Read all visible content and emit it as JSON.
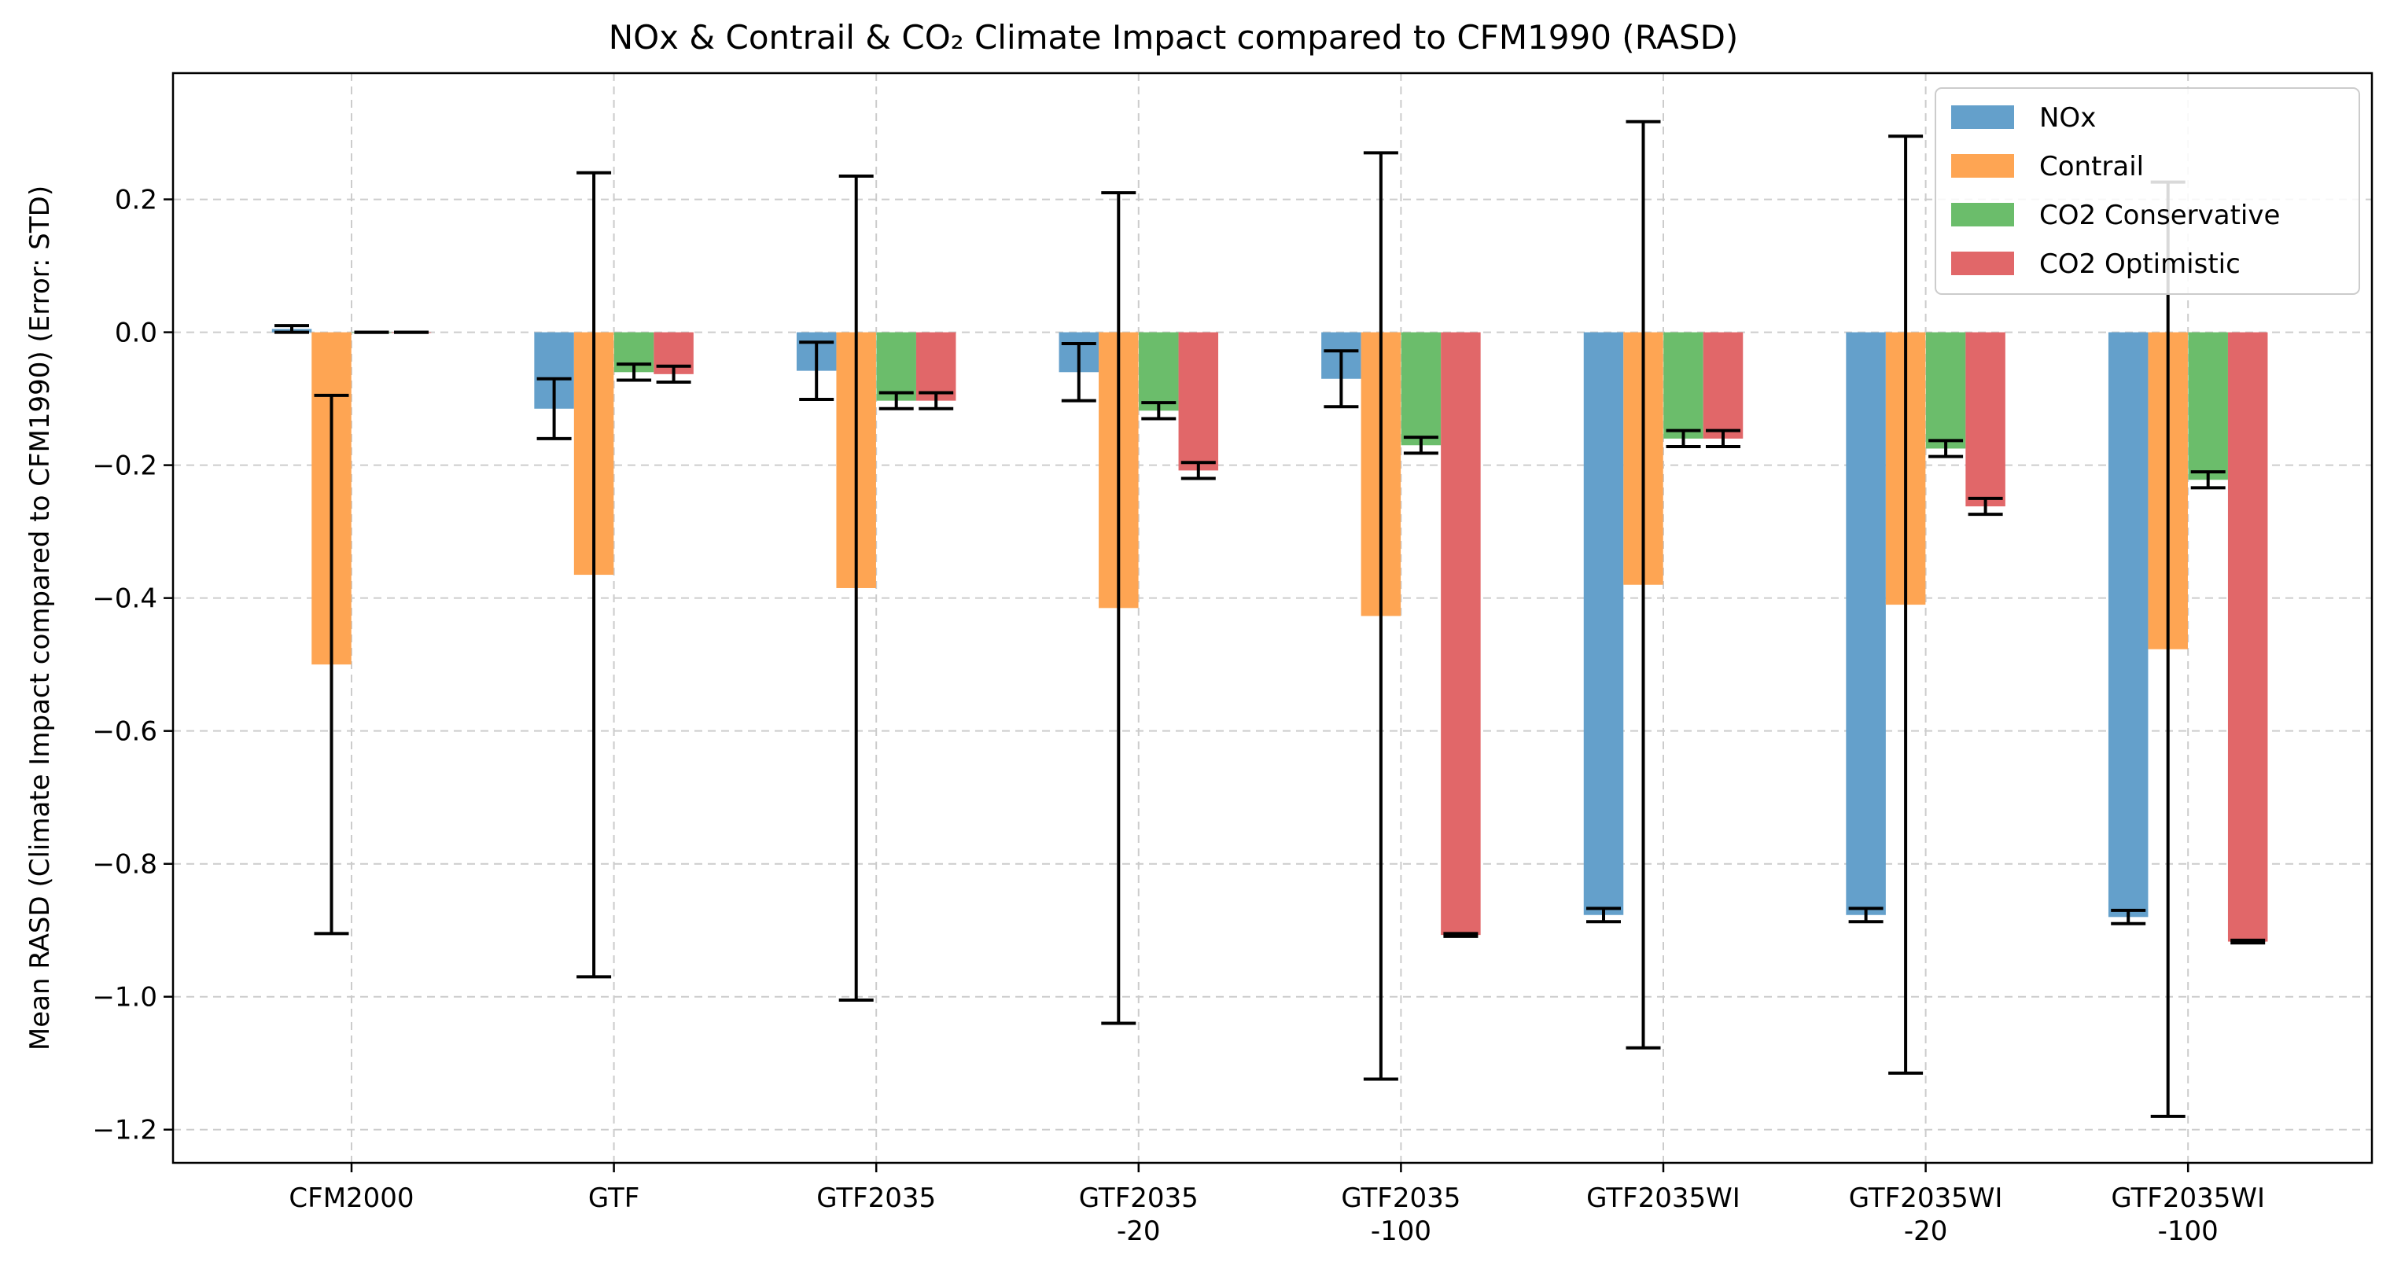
{
  "chart_data": {
    "type": "bar",
    "title": "NOx & Contrail & CO₂ Climate Impact compared to CFM1990 (RASD)",
    "xlabel": "",
    "ylabel": "Mean RASD (Climate Impact compared to CFM1990) (Error: STD)",
    "ylim": [
      -1.25,
      0.39
    ],
    "yticks": [
      0.2,
      0.0,
      -0.2,
      -0.4,
      -0.6,
      -0.8,
      -1.0,
      -1.2
    ],
    "ytick_labels": [
      "0.2",
      "0.0",
      "−0.2",
      "−0.4",
      "−0.6",
      "−0.8",
      "−1.0",
      "−1.2"
    ],
    "grid": true,
    "legend_position": "top-right",
    "categories": [
      [
        "CFM2000"
      ],
      [
        "GTF"
      ],
      [
        "GTF2035"
      ],
      [
        "GTF2035",
        "-20"
      ],
      [
        "GTF2035",
        "-100"
      ],
      [
        "GTF2035WI"
      ],
      [
        "GTF2035WI",
        "-20"
      ],
      [
        "GTF2035WI",
        "-100"
      ]
    ],
    "series": [
      {
        "name": "NOx",
        "color": "#64a0cb",
        "values": [
          0.005,
          -0.115,
          -0.058,
          -0.06,
          -0.07,
          -0.877,
          -0.877,
          -0.88
        ],
        "errors": [
          0.005,
          0.045,
          0.043,
          0.043,
          0.042,
          0.01,
          0.01,
          0.01
        ]
      },
      {
        "name": "Contrail",
        "color": "#fea553",
        "values": [
          -0.5,
          -0.365,
          -0.385,
          -0.415,
          -0.427,
          -0.38,
          -0.41,
          -0.477
        ],
        "errors": [
          0.405,
          0.605,
          0.62,
          0.625,
          0.697,
          0.697,
          0.705,
          0.703
        ]
      },
      {
        "name": "CO2 Conservative",
        "color": "#6bbd6b",
        "values": [
          0.0,
          -0.06,
          -0.103,
          -0.118,
          -0.17,
          -0.16,
          -0.175,
          -0.222
        ],
        "errors": [
          0.0,
          0.012,
          0.012,
          0.012,
          0.012,
          0.012,
          0.012,
          0.012
        ]
      },
      {
        "name": "CO2 Optimistic",
        "color": "#e16769",
        "values": [
          0.0,
          -0.063,
          -0.103,
          -0.208,
          -0.907,
          -0.16,
          -0.262,
          -0.917
        ],
        "errors": [
          0.0,
          0.012,
          0.012,
          0.012,
          0.002,
          0.012,
          0.012,
          0.002
        ]
      }
    ]
  }
}
